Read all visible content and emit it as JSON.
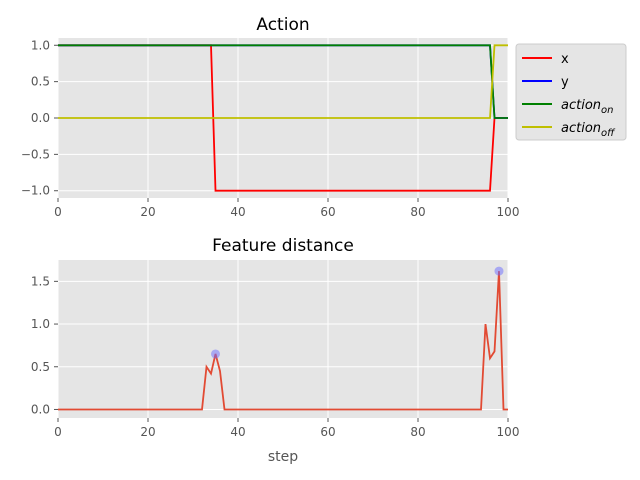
{
  "chart_data": [
    {
      "type": "line",
      "title": "Action",
      "xlabel": "",
      "ylabel": "",
      "xlim": [
        0,
        100
      ],
      "ylim": [
        -1.1,
        1.1
      ],
      "xticks": [
        0,
        20,
        40,
        60,
        80,
        100
      ],
      "yticks": [
        1.0,
        0.5,
        0.0,
        -0.5,
        -1.0
      ],
      "xtick_labels": [
        "0",
        "20",
        "40",
        "60",
        "80",
        "100"
      ],
      "ytick_labels": [
        "1.0",
        "0.5",
        "0.0",
        "−0.5",
        "−1.0"
      ],
      "grid": true,
      "legend_position": "outside-right",
      "series": [
        {
          "name": "x",
          "color": "#ff0000",
          "x": [
            0,
            34,
            35,
            96,
            97,
            100
          ],
          "y": [
            1,
            1,
            -1,
            -1,
            0,
            0
          ]
        },
        {
          "name": "y",
          "color": "#0000ff",
          "x": [
            0,
            96,
            97,
            100
          ],
          "y": [
            1,
            1,
            0,
            0
          ]
        },
        {
          "name": "action_on",
          "color": "#008000",
          "x": [
            0,
            96,
            97,
            100
          ],
          "y": [
            1,
            1,
            0,
            0
          ]
        },
        {
          "name": "action_off",
          "color": "#bfbf00",
          "x": [
            0,
            96,
            97,
            100
          ],
          "y": [
            0,
            0,
            1,
            1
          ]
        }
      ],
      "legend": [
        {
          "label": "x",
          "sub": ""
        },
        {
          "label": "y",
          "sub": ""
        },
        {
          "label": "action",
          "sub": "on"
        },
        {
          "label": "action",
          "sub": "off"
        }
      ]
    },
    {
      "type": "line",
      "title": "Feature distance",
      "xlabel": "step",
      "ylabel": "",
      "xlim": [
        0,
        100
      ],
      "ylim": [
        -0.1,
        1.75
      ],
      "xticks": [
        0,
        20,
        40,
        60,
        80,
        100
      ],
      "yticks": [
        1.5,
        1.0,
        0.5,
        0.0
      ],
      "xtick_labels": [
        "0",
        "20",
        "40",
        "60",
        "80",
        "100"
      ],
      "ytick_labels": [
        "1.5",
        "1.0",
        "0.5",
        "0.0"
      ],
      "grid": true,
      "series": [
        {
          "name": "",
          "color": "#e24a33",
          "x": [
            0,
            32,
            33,
            34,
            35,
            36,
            37,
            94,
            95,
            96,
            97,
            98,
            99,
            100
          ],
          "y": [
            0,
            0,
            0.5,
            0.42,
            0.65,
            0.45,
            0,
            0,
            1.0,
            0.6,
            0.68,
            1.62,
            0,
            0
          ]
        }
      ],
      "markers": {
        "color": "#6b6bff",
        "x": [
          35,
          98
        ],
        "y": [
          0.65,
          1.62
        ]
      }
    }
  ]
}
